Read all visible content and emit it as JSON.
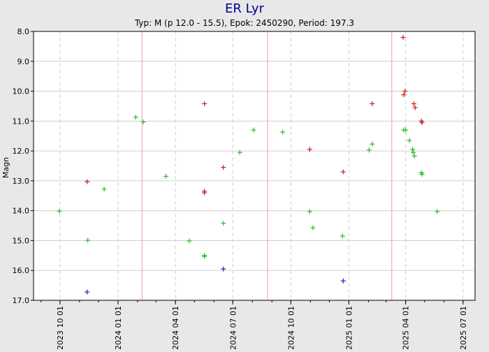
{
  "chart_data": {
    "type": "scatter",
    "title": "ER Lyr",
    "subtitle": "Typ: M (p 12.0 - 15.5), Epok: 2450290, Period: 197.3",
    "ylabel": "Magn",
    "xlabel": "",
    "y_inverted": true,
    "ylim": [
      17.0,
      8.0
    ],
    "xlim": [
      "2023-08-20",
      "2025-07-20"
    ],
    "grid": true,
    "legend": "none",
    "y_ticks": [
      "8.0",
      "9.0",
      "10.0",
      "11.0",
      "12.0",
      "13.0",
      "14.0",
      "15.0",
      "16.0",
      "17.0"
    ],
    "x_ticks": [
      "2023 10 01",
      "2024 01 01",
      "2024 04 01",
      "2024 07 01",
      "2024 10 01",
      "2025 01 01",
      "2025 04 01",
      "2025 07 01"
    ],
    "maxima_dates": [
      "2024-02-08",
      "2024-08-25",
      "2025-03-10"
    ],
    "colors": {
      "background": "#e8e8e8",
      "plot_bg": "#ffffff",
      "title": "#00008b",
      "maxima_line": "#f4a0a0",
      "grid": "#cccccc"
    },
    "series": [
      {
        "color": "#2eb82e",
        "points": [
          {
            "x": "2023-09-30",
            "y": 14.02
          },
          {
            "x": "2023-11-14",
            "y": 14.99
          },
          {
            "x": "2023-12-10",
            "y": 13.28
          },
          {
            "x": "2024-01-29",
            "y": 10.87
          },
          {
            "x": "2024-02-10",
            "y": 11.03
          },
          {
            "x": "2024-03-17",
            "y": 12.85
          },
          {
            "x": "2024-04-23",
            "y": 15.01
          },
          {
            "x": "2024-05-17",
            "y": 15.5
          },
          {
            "x": "2024-05-17",
            "y": 15.53
          },
          {
            "x": "2024-06-16",
            "y": 14.42
          },
          {
            "x": "2024-07-12",
            "y": 12.05
          },
          {
            "x": "2024-08-03",
            "y": 11.3
          },
          {
            "x": "2024-09-18",
            "y": 11.37
          },
          {
            "x": "2024-10-31",
            "y": 14.03
          },
          {
            "x": "2024-11-05",
            "y": 14.57
          },
          {
            "x": "2024-12-22",
            "y": 14.85
          },
          {
            "x": "2025-02-02",
            "y": 11.97
          },
          {
            "x": "2025-02-07",
            "y": 11.77
          },
          {
            "x": "2025-03-29",
            "y": 11.3
          },
          {
            "x": "2025-04-01",
            "y": 11.3
          },
          {
            "x": "2025-04-07",
            "y": 11.65
          },
          {
            "x": "2025-04-12",
            "y": 11.95
          },
          {
            "x": "2025-04-13",
            "y": 12.05
          },
          {
            "x": "2025-04-15",
            "y": 12.17
          },
          {
            "x": "2025-04-26",
            "y": 12.73
          },
          {
            "x": "2025-04-27",
            "y": 12.78
          },
          {
            "x": "2025-05-21",
            "y": 14.03
          }
        ]
      },
      {
        "color": "#cc1a1a",
        "points": [
          {
            "x": "2023-11-13",
            "y": 13.03
          },
          {
            "x": "2024-05-17",
            "y": 10.42
          },
          {
            "x": "2024-05-17",
            "y": 13.35
          },
          {
            "x": "2024-05-17",
            "y": 13.4
          },
          {
            "x": "2024-06-16",
            "y": 12.55
          },
          {
            "x": "2024-10-31",
            "y": 11.95
          },
          {
            "x": "2024-12-23",
            "y": 12.7
          },
          {
            "x": "2025-02-07",
            "y": 10.42
          },
          {
            "x": "2025-03-28",
            "y": 8.2
          },
          {
            "x": "2025-03-29",
            "y": 10.12
          },
          {
            "x": "2025-03-31",
            "y": 10.0
          },
          {
            "x": "2025-04-14",
            "y": 10.42
          },
          {
            "x": "2025-04-16",
            "y": 10.55
          },
          {
            "x": "2025-04-26",
            "y": 11.0
          },
          {
            "x": "2025-04-27",
            "y": 11.05
          }
        ]
      },
      {
        "color": "#1a1acc",
        "points": [
          {
            "x": "2023-11-13",
            "y": 16.72
          },
          {
            "x": "2024-06-16",
            "y": 15.95
          },
          {
            "x": "2024-12-23",
            "y": 16.35
          }
        ]
      }
    ]
  }
}
